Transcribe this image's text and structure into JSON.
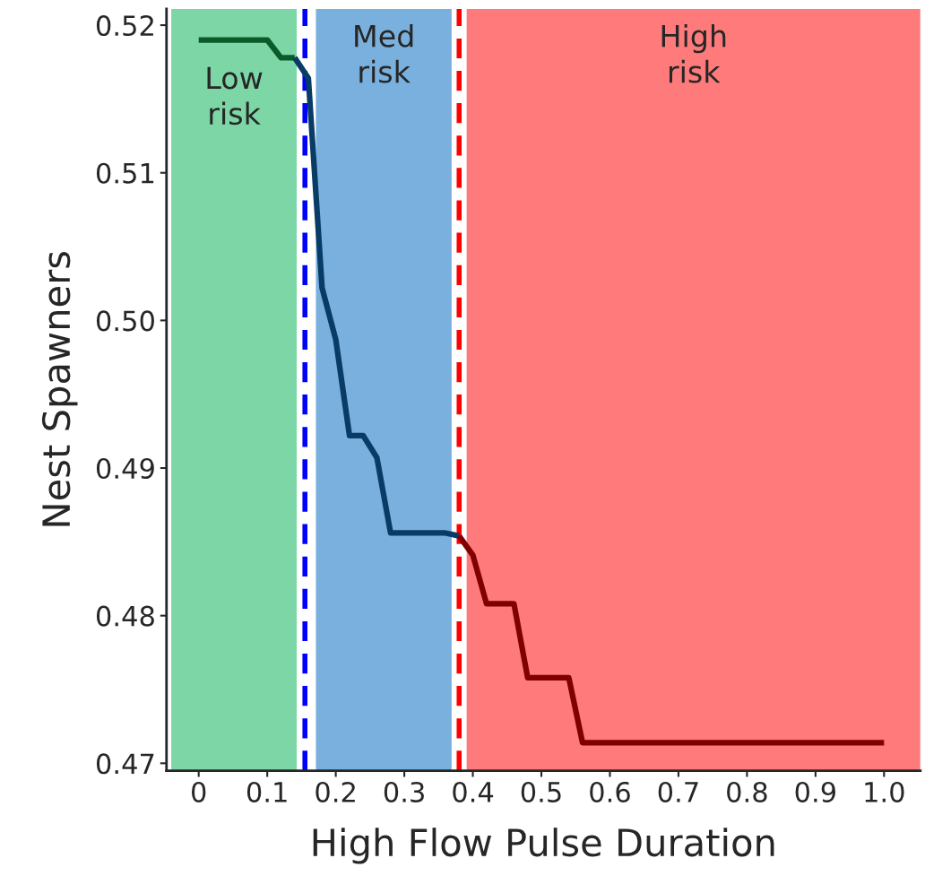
{
  "chart_data": {
    "type": "line",
    "xlabel": "High Flow Pulse Duration",
    "ylabel": "Nest Spawners",
    "series": [
      {
        "x": [
          0,
          0.1,
          0.12,
          0.14
        ],
        "values": [
          0.519,
          0.519,
          0.5178,
          0.5178
        ],
        "color": "#0b5a2a"
      },
      {
        "x": [
          0.14,
          0.16,
          0.18,
          0.2,
          0.22,
          0.24,
          0.26,
          0.28,
          0.36,
          0.38
        ],
        "values": [
          0.5178,
          0.5164,
          0.5022,
          0.4987,
          0.4922,
          0.4922,
          0.4907,
          0.4856,
          0.4856,
          0.4854
        ],
        "color": "#083b66"
      },
      {
        "x": [
          0.38,
          0.4,
          0.42,
          0.46,
          0.48,
          0.54,
          0.56,
          1.0
        ],
        "values": [
          0.4854,
          0.4841,
          0.4808,
          0.4808,
          0.4758,
          0.4758,
          0.4714,
          0.4714
        ],
        "color": "#800000"
      }
    ],
    "bands": [
      {
        "axis": "x",
        "from": -0.04,
        "to": 0.143,
        "label": "Low\nrisk",
        "color": "#7dd6a6"
      },
      {
        "axis": "x",
        "from": 0.171,
        "to": 0.369,
        "label": "Med\nrisk",
        "color": "#7ab0de"
      },
      {
        "axis": "x",
        "from": 0.391,
        "to": 1.053,
        "label": "High\nrisk",
        "color": "#ff7a7a"
      }
    ],
    "ref_lines": [
      {
        "axis": "x",
        "value": 0.155,
        "color": "#0000ff",
        "line_style": "dashed"
      },
      {
        "axis": "x",
        "value": 0.38,
        "color": "#ff0000",
        "line_style": "dashed"
      }
    ],
    "xlim": [
      -0.047,
      1.053
    ],
    "ylim": [
      0.4695,
      0.5211
    ],
    "xticks": [
      0,
      0.1,
      0.2,
      0.3,
      0.4,
      0.5,
      0.6,
      0.7,
      0.8,
      0.9,
      {
        "value": 1.0,
        "label": "1.0"
      }
    ],
    "yticks": [
      0.47,
      0.48,
      0.49,
      {
        "value": 0.5,
        "label": "0.50"
      },
      0.51,
      0.52
    ],
    "grid": false,
    "legend": false,
    "marker": "none",
    "line_style": "solid"
  }
}
